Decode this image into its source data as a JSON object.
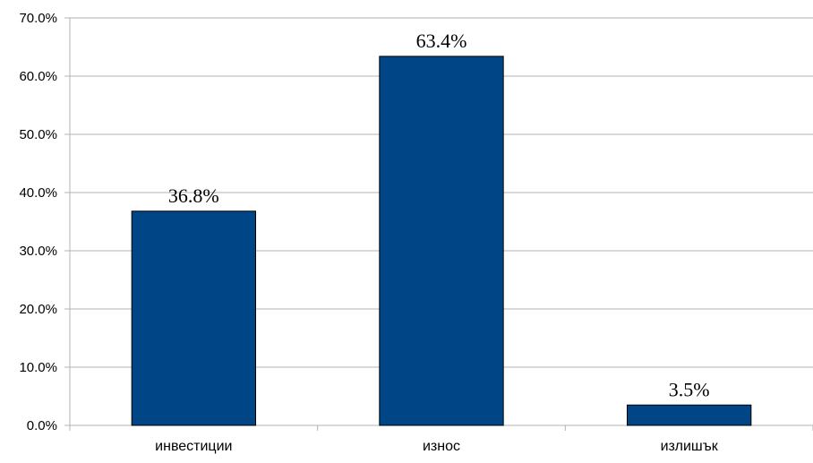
{
  "chart_data": {
    "type": "bar",
    "categories": [
      "инвестиции",
      "износ",
      "излишък"
    ],
    "values": [
      36.8,
      63.4,
      3.5
    ],
    "data_labels": [
      "36.8%",
      "63.4%",
      "3.5%"
    ],
    "title": "",
    "xlabel": "",
    "ylabel": "",
    "ylim": [
      0,
      70
    ],
    "y_ticks": [
      0,
      10,
      20,
      30,
      40,
      50,
      60,
      70
    ],
    "y_tick_labels": [
      "0.0%",
      "10.0%",
      "20.0%",
      "30.0%",
      "40.0%",
      "50.0%",
      "60.0%",
      "70.0%"
    ],
    "grid": true,
    "legend": "none",
    "colors": {
      "bar": "#004586",
      "bar_border": "#000000",
      "grid": "#b3b3b3",
      "axis": "#b3b3b3"
    }
  }
}
